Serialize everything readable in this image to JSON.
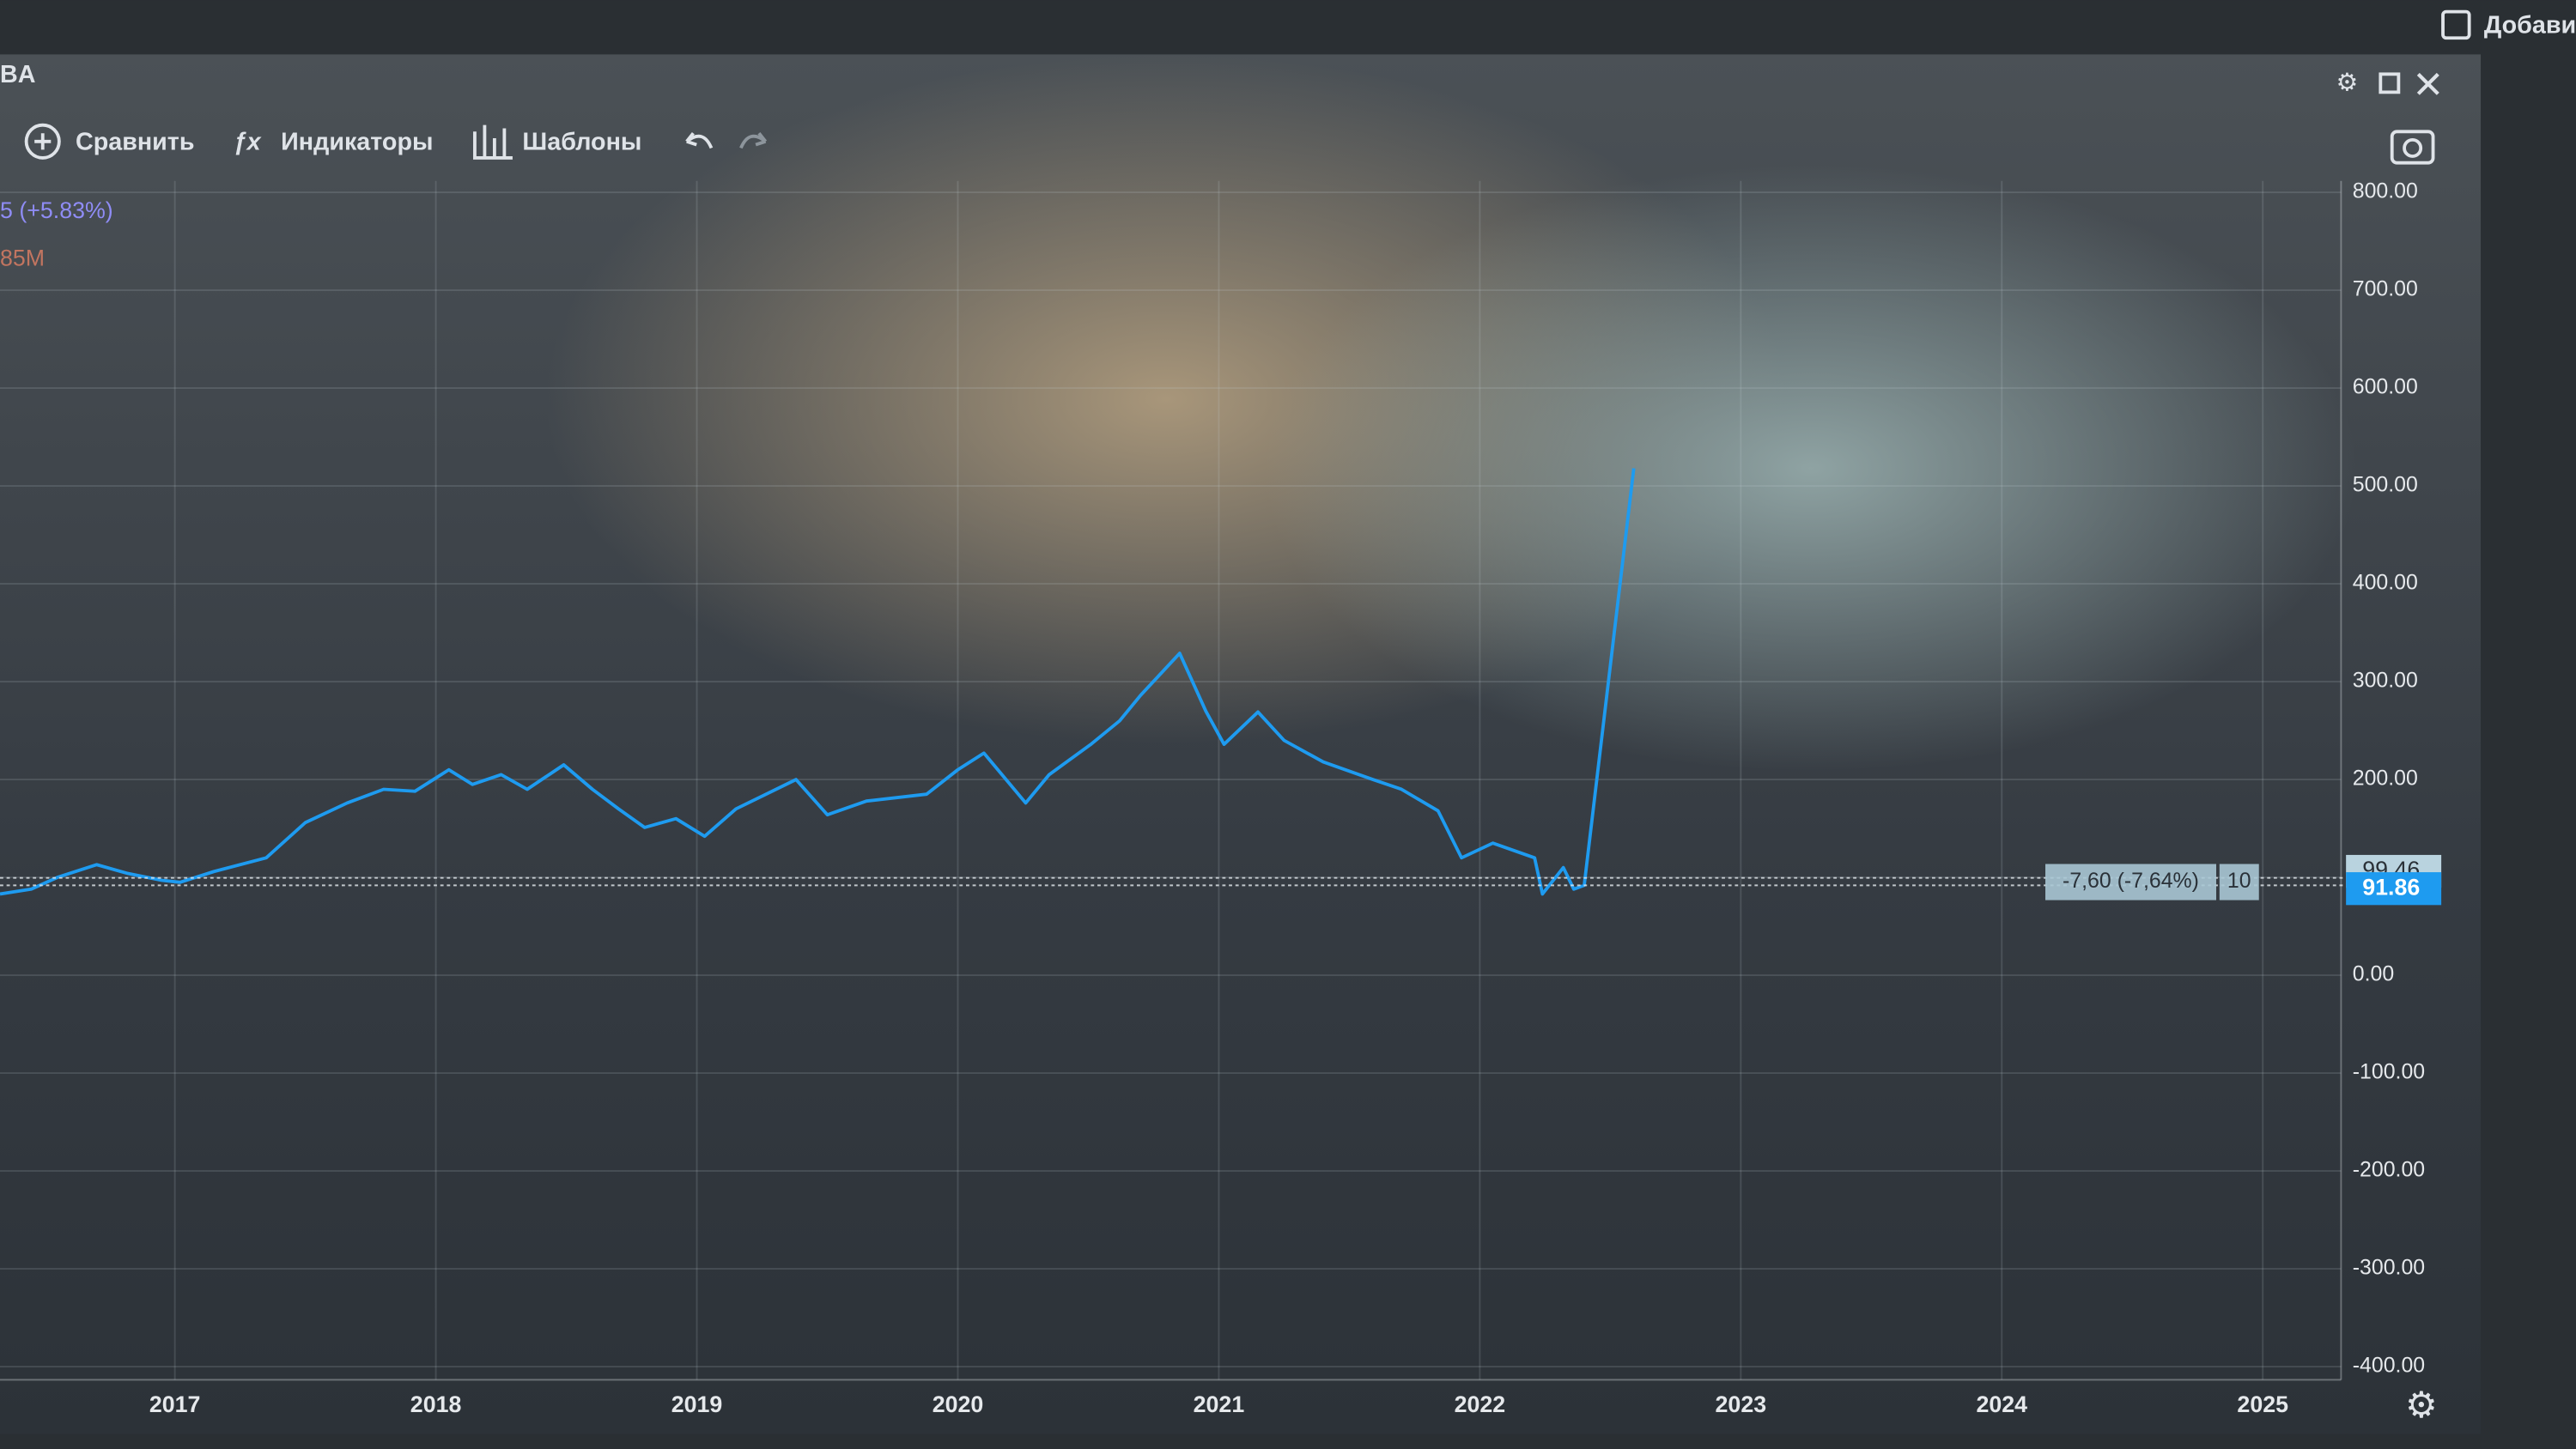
{
  "window": {
    "symbol": "BA",
    "change": "5 (+5.83%)",
    "volume": "85M",
    "top_button": "Добави"
  },
  "toolbar": {
    "compare": "Сравнить",
    "indicators": "Индикаторы",
    "templates": "Шаблоны"
  },
  "chart_data": {
    "type": "line",
    "x": [
      2016.33,
      2016.45,
      2016.55,
      2016.7,
      2016.82,
      2016.95,
      2017.02,
      2017.15,
      2017.35,
      2017.5,
      2017.66,
      2017.8,
      2017.92,
      2018.05,
      2018.14,
      2018.25,
      2018.35,
      2018.49,
      2018.6,
      2018.7,
      2018.8,
      2018.92,
      2019.03,
      2019.15,
      2019.38,
      2019.5,
      2019.65,
      2019.88,
      2020.0,
      2020.1,
      2020.26,
      2020.35,
      2020.51,
      2020.62,
      2020.7,
      2020.85,
      2020.95,
      2021.02,
      2021.15,
      2021.25,
      2021.4,
      2021.59,
      2021.7,
      2021.84,
      2021.93,
      2022.05,
      2022.21,
      2022.24,
      2022.32,
      2022.36,
      2022.4,
      2022.59
    ],
    "series": [
      {
        "color": "#1e9bf0",
        "values": [
          83,
          88,
          100,
          113,
          104,
          97,
          95,
          106,
          120,
          156,
          176,
          190,
          188,
          210,
          195,
          205,
          190,
          215,
          190,
          170,
          151,
          160,
          142,
          170,
          200,
          164,
          178,
          185,
          210,
          227,
          176,
          205,
          236,
          260,
          286,
          329,
          270,
          236,
          269,
          240,
          218,
          200,
          190,
          168,
          120,
          135,
          120,
          83,
          110,
          88,
          91.86,
          518
        ]
      }
    ],
    "xlim": [
      2016.33,
      2025.3
    ],
    "xticks": [
      2017,
      2018,
      2019,
      2020,
      2021,
      2022,
      2023,
      2024,
      2025
    ],
    "ylim": [
      -400,
      800
    ],
    "yticks": [
      {
        "value": 800,
        "label": "800.00"
      },
      {
        "value": 700,
        "label": "700.00"
      },
      {
        "value": 600,
        "label": "600.00"
      },
      {
        "value": 500,
        "label": "500.00"
      },
      {
        "value": 400,
        "label": "400.00"
      },
      {
        "value": 300,
        "label": "300.00"
      },
      {
        "value": 200,
        "label": "200.00"
      },
      {
        "value": 100,
        "label": "100.00"
      },
      {
        "value": 0,
        "label": "0.00"
      },
      {
        "value": -100,
        "label": "-100.00"
      },
      {
        "value": -200,
        "label": "-200.00"
      },
      {
        "value": -300,
        "label": "-300.00"
      },
      {
        "value": -400,
        "label": "-400.00"
      }
    ],
    "grid": true,
    "price_labels": [
      99.46,
      91.86
    ],
    "change_label": "-7,60 (-7,64%)",
    "quantity_label": 10
  }
}
